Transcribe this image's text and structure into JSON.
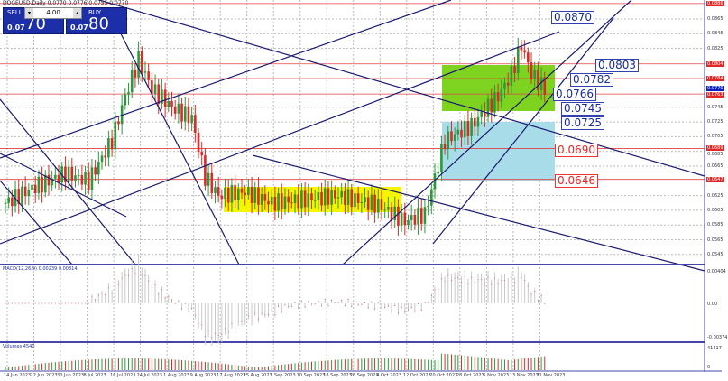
{
  "header": {
    "symbol_info": "DOGEUSD,Daily 0.0770 0.0776 0.0755 0.0770"
  },
  "trade_panel": {
    "sell_label": "SELL",
    "buy_label": "BUY",
    "lot": "4.00",
    "sell_prefix": "0.07",
    "sell_big": "70",
    "buy_prefix": "0.07",
    "buy_big": "80"
  },
  "price_axis": {
    "ticks": [
      "0.0865",
      "0.0845",
      "0.0825",
      "0.0745",
      "0.0725",
      "0.0705",
      "0.0685",
      "0.0665",
      "0.0625",
      "0.0605",
      "0.0585",
      "0.0565",
      "0.0545"
    ],
    "levels": [
      {
        "text": "0.0886",
        "p": 0.0886
      },
      {
        "text": "0.0804",
        "p": 0.0804
      },
      {
        "text": "0.0784",
        "p": 0.0784
      },
      {
        "text": "0.0763",
        "p": 0.0763
      },
      {
        "text": "0.0689",
        "p": 0.0689
      },
      {
        "text": "0.0647",
        "p": 0.0647
      }
    ],
    "current": "0.0770"
  },
  "annotations": [
    {
      "text": "0.0870",
      "color": "blue"
    },
    {
      "text": "0.0803",
      "color": "blue"
    },
    {
      "text": "0.0782",
      "color": "blue"
    },
    {
      "text": "0.0766",
      "color": "blue"
    },
    {
      "text": "0.0745",
      "color": "blue"
    },
    {
      "text": "0.0725",
      "color": "blue"
    },
    {
      "text": "0.0690",
      "color": "red"
    },
    {
      "text": "0.0646",
      "color": "red"
    }
  ],
  "price_waypoints": [
    [
      0,
      0.0615
    ],
    [
      8,
      0.0635
    ],
    [
      18,
      0.0655
    ],
    [
      25,
      0.0645
    ],
    [
      32,
      0.07
    ],
    [
      36,
      0.076
    ],
    [
      40,
      0.081
    ],
    [
      44,
      0.077
    ],
    [
      50,
      0.0745
    ],
    [
      56,
      0.073
    ],
    [
      60,
      0.065
    ],
    [
      64,
      0.0625
    ],
    [
      72,
      0.063
    ],
    [
      80,
      0.0615
    ],
    [
      90,
      0.062
    ],
    [
      100,
      0.0625
    ],
    [
      112,
      0.0612
    ],
    [
      120,
      0.059
    ],
    [
      126,
      0.06
    ],
    [
      132,
      0.07
    ],
    [
      140,
      0.072
    ],
    [
      148,
      0.076
    ],
    [
      152,
      0.079
    ],
    [
      155,
      0.083
    ],
    [
      158,
      0.079
    ],
    [
      162,
      0.077
    ]
  ],
  "macd": {
    "label": "MACD(12,26,9) 0.00239 0.00314",
    "ticks": [
      "0.00404",
      "0.00",
      "-0.00374"
    ]
  },
  "volume": {
    "label": "Volumes 4540",
    "ticks": [
      "41417",
      "0"
    ]
  },
  "dates": [
    "14 Jun 2023",
    "22 Jun 2023",
    "30 Jun 2023",
    "8 Jul 2023",
    "16 Jul 2023",
    "24 Jul 2023",
    "1 Aug 2023",
    "9 Aug 2023",
    "17 Aug 2023",
    "25 Aug 2023",
    "2 Sep 2023",
    "10 Sep 2023",
    "18 Sep 2023",
    "26 Sep 2023",
    "4 Oct 2023",
    "12 Oct 2023",
    "20 Oct 2023",
    "28 Oct 2023",
    "5 Nov 2023",
    "13 Nov 2023",
    "21 Nov 2023"
  ],
  "colors": {
    "up": "#2a9a3a",
    "down": "#e02828",
    "line": "#1a1a70",
    "green_zone": "#7ed321",
    "blue_zone": "#a8dce8",
    "yellow_zone": "#f5f500"
  }
}
